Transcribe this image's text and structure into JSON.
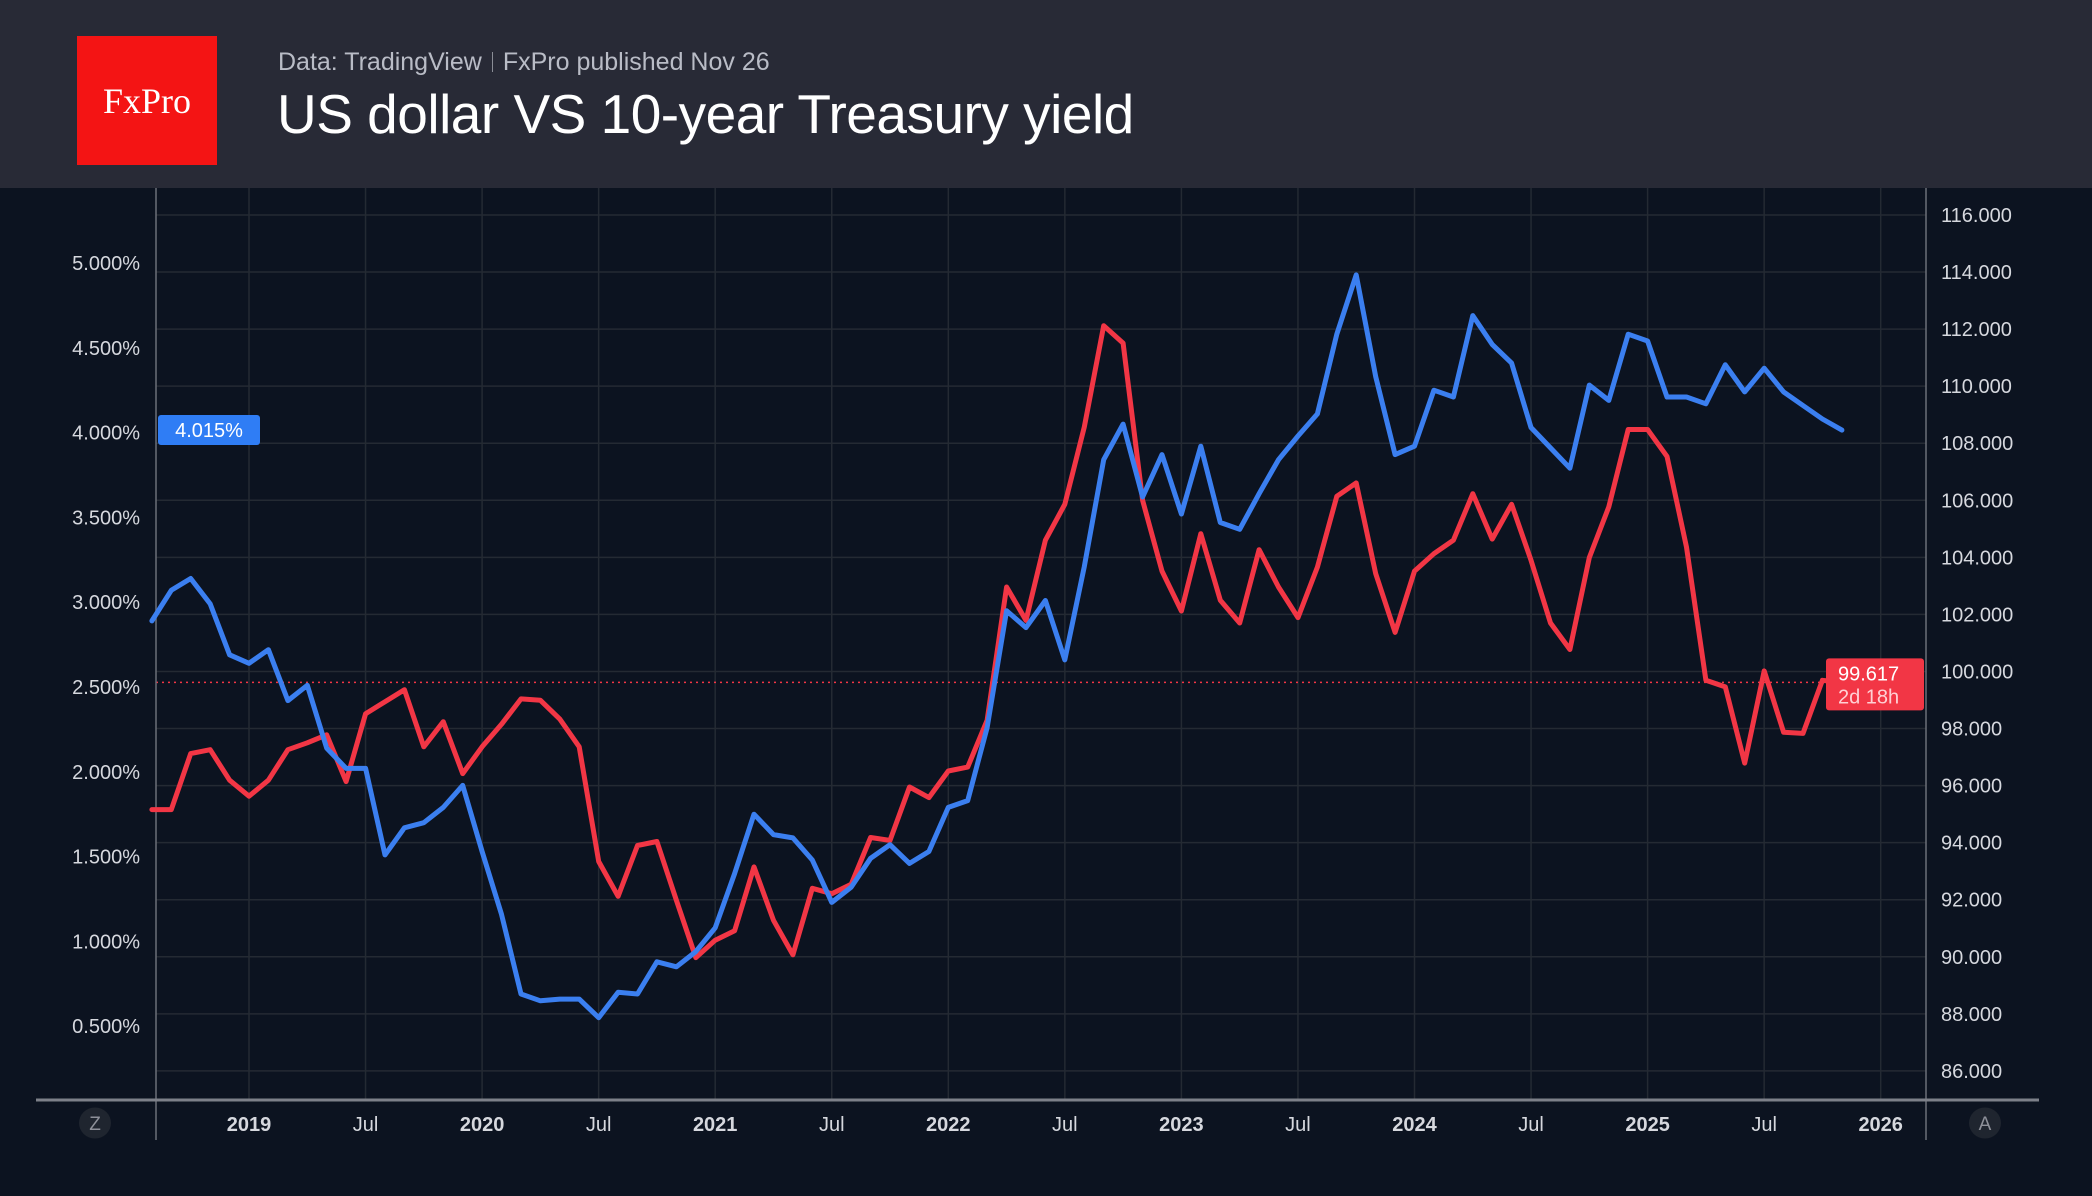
{
  "header": {
    "logo_text": "FxPro",
    "source": "Data: TradingView",
    "published": "FxPro published Nov 26",
    "title": "US dollar VS 10-year Treasury yield"
  },
  "chart_data": {
    "type": "line",
    "title": "US dollar VS 10-year Treasury yield",
    "x_ticks": [
      "2019",
      "Jul",
      "2020",
      "Jul",
      "2021",
      "Jul",
      "2022",
      "Jul",
      "2023",
      "Jul",
      "2024",
      "Jul",
      "2025",
      "Jul",
      "2026"
    ],
    "left_axis": {
      "ticks": [
        "0.500%",
        "1.000%",
        "1.500%",
        "2.000%",
        "2.500%",
        "3.000%",
        "3.500%",
        "4.000%",
        "4.500%",
        "5.000%"
      ],
      "range": [
        0.3,
        5.3
      ]
    },
    "right_axis": {
      "ticks": [
        "86.000",
        "88.000",
        "90.000",
        "92.000",
        "94.000",
        "96.000",
        "98.000",
        "100.000",
        "102.000",
        "104.000",
        "106.000",
        "108.000",
        "110.000",
        "112.000",
        "114.000",
        "116.000"
      ],
      "range": [
        85.5,
        117
      ]
    },
    "grid": true,
    "x_start": "2018-08",
    "x_end": "2025-11",
    "series": [
      {
        "axis": "left",
        "color": "#3b7ff0",
        "last_label": "4.015%",
        "values": [
          2.89,
          3.07,
          3.14,
          2.99,
          2.69,
          2.64,
          2.72,
          2.42,
          2.51,
          2.14,
          2.02,
          2.02,
          1.51,
          1.67,
          1.7,
          1.79,
          1.92,
          1.53,
          1.16,
          0.69,
          0.65,
          0.66,
          0.66,
          0.55,
          0.7,
          0.69,
          0.88,
          0.85,
          0.94,
          1.08,
          1.4,
          1.75,
          1.63,
          1.61,
          1.48,
          1.23,
          1.32,
          1.49,
          1.57,
          1.46,
          1.53,
          1.79,
          1.83,
          2.26,
          2.95,
          2.85,
          3.01,
          2.66,
          3.21,
          3.84,
          4.05,
          3.62,
          3.87,
          3.52,
          3.92,
          3.47,
          3.43,
          3.64,
          3.84,
          3.98,
          4.11,
          4.58,
          4.93,
          4.33,
          3.87,
          3.92,
          4.25,
          4.21,
          4.69,
          4.52,
          4.41,
          4.03,
          3.91,
          3.79,
          4.28,
          4.19,
          4.58,
          4.54,
          4.21,
          4.21,
          4.17,
          4.4,
          4.24,
          4.38,
          4.24,
          4.16,
          4.08,
          4.015
        ]
      },
      {
        "axis": "right",
        "color": "#f23645",
        "last_label": "99.617",
        "countdown": "2d 18h",
        "values": [
          95.16,
          95.16,
          97.12,
          97.26,
          96.19,
          95.63,
          96.19,
          97.26,
          97.5,
          97.78,
          96.14,
          98.52,
          98.94,
          99.36,
          97.36,
          98.24,
          96.42,
          97.36,
          98.15,
          99.04,
          98.99,
          98.33,
          97.36,
          93.34,
          92.12,
          93.9,
          94.04,
          91.98,
          89.97,
          90.58,
          90.91,
          93.15,
          91.28,
          90.07,
          92.4,
          92.21,
          92.54,
          94.18,
          94.08,
          95.95,
          95.58,
          96.51,
          96.65,
          98.29,
          102.96,
          101.79,
          104.6,
          105.86,
          108.57,
          112.12,
          111.51,
          106.0,
          103.52,
          102.12,
          104.83,
          102.5,
          101.7,
          104.27,
          102.96,
          101.89,
          103.66,
          106.14,
          106.61,
          103.43,
          101.37,
          103.52,
          104.13,
          104.6,
          106.23,
          104.64,
          105.86,
          103.9,
          101.7,
          100.77,
          103.99,
          105.77,
          108.48,
          108.48,
          107.54,
          104.36,
          99.69,
          99.46,
          96.79,
          100.02,
          97.87,
          97.83,
          99.69,
          99.617
        ]
      }
    ]
  },
  "controls": {
    "left_button": "Z",
    "right_button": "A"
  },
  "colors": {
    "background": "#0c1320",
    "header": "#282a36",
    "logo": "#f41414",
    "blue": "#3b7ff0",
    "red": "#f23645"
  }
}
